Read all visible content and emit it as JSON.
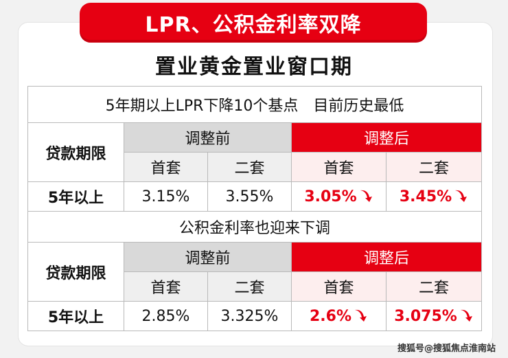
{
  "banner": {
    "title": "LPR、公积金利率双降"
  },
  "subtitle": "置业黄金置业窗口期",
  "sections": [
    {
      "notice": "5年期以上LPR下降10个基点　目前历史最低",
      "term_header": "贷款期限",
      "before_label": "调整前",
      "after_label": "调整后",
      "first_label": "首套",
      "second_label": "二套",
      "row_term": "5年以上",
      "before_first": "3.15%",
      "before_second": "3.55%",
      "after_first": "3.05%",
      "after_second": "3.45%"
    },
    {
      "notice": "公积金利率也迎来下调",
      "term_header": "贷款期限",
      "before_label": "调整前",
      "after_label": "调整后",
      "first_label": "首套",
      "second_label": "二套",
      "row_term": "5年以上",
      "before_first": "2.85%",
      "before_second": "3.325%",
      "after_first": "2.6%",
      "after_second": "3.075%"
    }
  ],
  "arrow_icon": "down-arrow-icon",
  "colors": {
    "accent": "#e60012",
    "before_bg": "#d9d9d9",
    "after_sub_bg": "#fdeeee"
  },
  "watermark": "搜狐号@搜狐焦点淮南站"
}
